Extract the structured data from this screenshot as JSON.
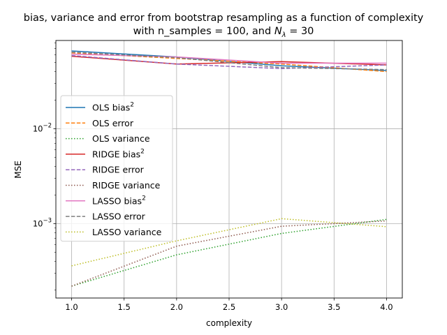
{
  "chart_data": {
    "type": "line",
    "title_line1": "bias, variance and error from bootstrap resampling as a function of complexity",
    "title_line2_prefix": "with n_samples = 100, and ",
    "title_line2_symbol": "N",
    "title_line2_subscript": "λ",
    "title_line2_suffix": " = 30",
    "xlabel": "complexity",
    "ylabel": "MSE",
    "xlim": [
      0.85,
      4.15
    ],
    "ylim": [
      0.000165,
      0.085
    ],
    "yscale": "log",
    "grid": true,
    "legend_position": "left",
    "x_ticks": [
      1.0,
      1.5,
      2.0,
      2.5,
      3.0,
      3.5,
      4.0
    ],
    "x_tick_labels": [
      "1.0",
      "1.5",
      "2.0",
      "2.5",
      "3.0",
      "3.5",
      "4.0"
    ],
    "y_ticks": [
      0.001,
      0.01
    ],
    "y_tick_base": "10",
    "y_tick_exponents": [
      "−3",
      "−2"
    ],
    "x": [
      1.0,
      2.0,
      3.0,
      4.0
    ],
    "series": [
      {
        "name": "OLS bias",
        "superscript": "2",
        "color": "#1f77b4",
        "style": "solid",
        "values": [
          0.066,
          0.057,
          0.046,
          0.041
        ]
      },
      {
        "name": "OLS error",
        "superscript": "",
        "color": "#ff7f0e",
        "style": "dashed",
        "values": [
          0.063,
          0.055,
          0.048,
          0.04
        ]
      },
      {
        "name": "OLS variance",
        "superscript": "",
        "color": "#2ca02c",
        "style": "dotted",
        "values": [
          0.00022,
          0.00047,
          0.00079,
          0.00111
        ]
      },
      {
        "name": "RIDGE bias",
        "superscript": "2",
        "color": "#d62728",
        "style": "solid",
        "values": [
          0.058,
          0.048,
          0.051,
          0.047
        ]
      },
      {
        "name": "RIDGE error",
        "superscript": "",
        "color": "#9467bd",
        "style": "dashed",
        "values": [
          0.059,
          0.048,
          0.043,
          0.047
        ]
      },
      {
        "name": "RIDGE variance",
        "superscript": "",
        "color": "#8c564b",
        "style": "dotted",
        "values": [
          0.00022,
          0.00058,
          0.00094,
          0.00107
        ]
      },
      {
        "name": "LASSO bias",
        "superscript": "2",
        "color": "#e377c2",
        "style": "solid",
        "values": [
          0.061,
          0.057,
          0.049,
          0.049
        ]
      },
      {
        "name": "LASSO error",
        "superscript": "",
        "color": "#7f7f7f",
        "style": "dashed",
        "values": [
          0.064,
          0.056,
          0.044,
          0.042
        ]
      },
      {
        "name": "LASSO variance",
        "superscript": "",
        "color": "#bcbd22",
        "style": "dotted",
        "values": [
          0.00036,
          0.00066,
          0.00113,
          0.00093
        ]
      }
    ]
  }
}
